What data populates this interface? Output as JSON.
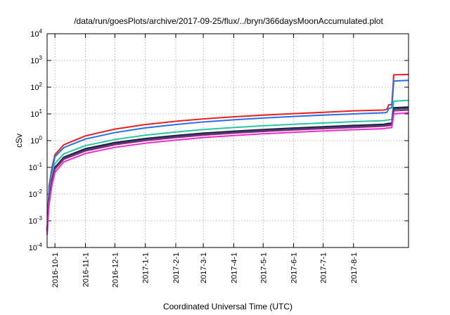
{
  "chart_data": {
    "type": "line",
    "title": "/data/run/goesPlots/archive/2017-09-25/flux/../bryn/366daysMoonAccumulated.plot",
    "xlabel": "Coordinated Universal Time (UTC)",
    "ylabel": "cSv",
    "yscale": "log",
    "ylim": [
      0.0001,
      10000
    ],
    "xlim": [
      "2016-09-23",
      "2017-09-26"
    ],
    "y_ticks": [
      {
        "base": "10",
        "exp": "4"
      },
      {
        "base": "10",
        "exp": "3"
      },
      {
        "base": "10",
        "exp": "2"
      },
      {
        "base": "10",
        "exp": "1"
      },
      {
        "base": "10",
        "exp": "0"
      },
      {
        "base": "10",
        "exp": "-1"
      },
      {
        "base": "10",
        "exp": "-2"
      },
      {
        "base": "10",
        "exp": "-3"
      },
      {
        "base": "10",
        "exp": "-4"
      }
    ],
    "x_ticks": [
      "2016-10-1",
      "2016-11-1",
      "2016-12-1",
      "2017-1-1",
      "2017-2-1",
      "2017-3-1",
      "2017-4-1",
      "2017-5-1",
      "2017-6-1",
      "2017-7-1",
      "2017-8-1"
    ],
    "grid": true,
    "series": [
      {
        "color": "#e8201e",
        "x": [
          "2016-09-23",
          "2016-09-25",
          "2016-09-28",
          "2016-10-01",
          "2016-10-10",
          "2016-11-01",
          "2016-12-01",
          "2017-01-01",
          "2017-02-01",
          "2017-03-01",
          "2017-04-01",
          "2017-05-01",
          "2017-06-01",
          "2017-07-01",
          "2017-08-01",
          "2017-09-01",
          "2017-09-04",
          "2017-09-06",
          "2017-09-09",
          "2017-09-11",
          "2017-09-26"
        ],
        "values": [
          0.0004,
          0.02,
          0.1,
          0.3,
          0.7,
          1.5,
          2.7,
          4.0,
          5.3,
          6.5,
          7.8,
          9.0,
          10.2,
          11.5,
          13.0,
          14.0,
          15.0,
          22.0,
          22.5,
          290.0,
          300.0
        ]
      },
      {
        "color": "#2a6ee8",
        "x": [
          "2016-09-23",
          "2016-09-25",
          "2016-09-28",
          "2016-10-01",
          "2016-10-10",
          "2016-11-01",
          "2016-12-01",
          "2017-01-01",
          "2017-02-01",
          "2017-03-01",
          "2017-04-01",
          "2017-05-01",
          "2017-06-01",
          "2017-07-01",
          "2017-08-01",
          "2017-09-01",
          "2017-09-04",
          "2017-09-06",
          "2017-09-09",
          "2017-09-11",
          "2017-09-26"
        ],
        "values": [
          0.0004,
          0.015,
          0.08,
          0.25,
          0.55,
          1.15,
          2.0,
          3.0,
          4.0,
          5.0,
          6.0,
          7.0,
          8.0,
          9.0,
          10.0,
          11.0,
          11.5,
          16.0,
          17.0,
          170.0,
          180.0
        ]
      },
      {
        "color": "#27c7a3",
        "x": [
          "2016-09-23",
          "2016-09-25",
          "2016-09-28",
          "2016-10-01",
          "2016-10-10",
          "2016-11-01",
          "2016-12-01",
          "2017-01-01",
          "2017-02-01",
          "2017-03-01",
          "2017-04-01",
          "2017-05-01",
          "2017-06-01",
          "2017-07-01",
          "2017-08-01",
          "2017-09-01",
          "2017-09-04",
          "2017-09-09",
          "2017-09-11",
          "2017-09-26"
        ],
        "values": [
          0.0004,
          0.008,
          0.05,
          0.14,
          0.32,
          0.65,
          1.1,
          1.6,
          2.1,
          2.6,
          3.1,
          3.6,
          4.1,
          4.6,
          5.1,
          5.6,
          5.9,
          6.2,
          30.0,
          32.0
        ]
      },
      {
        "color": "#1e1a1a",
        "x": [
          "2016-09-23",
          "2016-09-25",
          "2016-09-28",
          "2016-10-01",
          "2016-10-10",
          "2016-11-01",
          "2016-12-01",
          "2017-01-01",
          "2017-02-01",
          "2017-03-01",
          "2017-04-01",
          "2017-05-01",
          "2017-06-01",
          "2017-07-01",
          "2017-08-01",
          "2017-09-01",
          "2017-09-04",
          "2017-09-09",
          "2017-09-11",
          "2017-09-26"
        ],
        "values": [
          0.0004,
          0.006,
          0.035,
          0.1,
          0.24,
          0.5,
          0.85,
          1.2,
          1.55,
          1.9,
          2.25,
          2.6,
          2.95,
          3.3,
          3.7,
          4.1,
          4.3,
          4.5,
          17.0,
          18.0
        ]
      },
      {
        "color": "#2a3f8f",
        "x": [
          "2016-09-23",
          "2016-09-25",
          "2016-09-28",
          "2016-10-01",
          "2016-10-10",
          "2016-11-01",
          "2016-12-01",
          "2017-01-01",
          "2017-02-01",
          "2017-03-01",
          "2017-04-01",
          "2017-05-01",
          "2017-06-01",
          "2017-07-01",
          "2017-08-01",
          "2017-09-01",
          "2017-09-04",
          "2017-09-09",
          "2017-09-11",
          "2017-09-26"
        ],
        "values": [
          0.0004,
          0.0055,
          0.032,
          0.09,
          0.22,
          0.45,
          0.77,
          1.1,
          1.42,
          1.75,
          2.07,
          2.4,
          2.72,
          3.05,
          3.4,
          3.75,
          3.95,
          4.1,
          15.0,
          16.0
        ]
      },
      {
        "color": "#8c2a6e",
        "x": [
          "2016-09-23",
          "2016-09-25",
          "2016-09-28",
          "2016-10-01",
          "2016-10-10",
          "2016-11-01",
          "2016-12-01",
          "2017-01-01",
          "2017-02-01",
          "2017-03-01",
          "2017-04-01",
          "2017-05-01",
          "2017-06-01",
          "2017-07-01",
          "2017-08-01",
          "2017-09-01",
          "2017-09-04",
          "2017-09-09",
          "2017-09-11",
          "2017-09-26"
        ],
        "values": [
          0.0004,
          0.005,
          0.029,
          0.085,
          0.2,
          0.41,
          0.7,
          1.0,
          1.3,
          1.6,
          1.9,
          2.2,
          2.5,
          2.8,
          3.1,
          3.45,
          3.6,
          3.75,
          13.0,
          14.0
        ]
      },
      {
        "color": "#ee2ad0",
        "x": [
          "2016-09-23",
          "2016-09-25",
          "2016-09-28",
          "2016-10-01",
          "2016-10-10",
          "2016-11-01",
          "2016-12-01",
          "2017-01-01",
          "2017-02-01",
          "2017-03-01",
          "2017-04-01",
          "2017-05-01",
          "2017-06-01",
          "2017-07-01",
          "2017-08-01",
          "2017-09-01",
          "2017-09-04",
          "2017-09-09",
          "2017-09-11",
          "2017-09-26"
        ],
        "values": [
          0.0003,
          0.004,
          0.022,
          0.065,
          0.16,
          0.33,
          0.56,
          0.8,
          1.05,
          1.3,
          1.55,
          1.8,
          2.05,
          2.3,
          2.55,
          2.8,
          2.95,
          3.1,
          10.0,
          11.0
        ]
      }
    ]
  }
}
